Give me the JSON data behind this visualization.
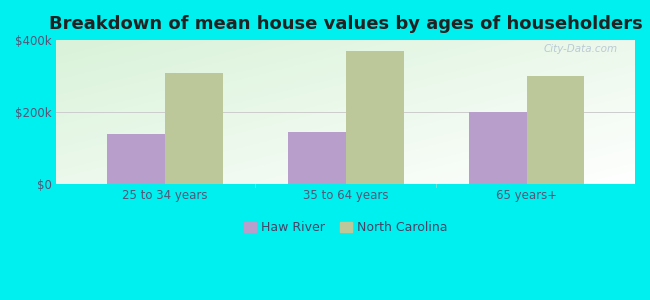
{
  "title": "Breakdown of mean house values by ages of householders",
  "categories": [
    "25 to 34 years",
    "35 to 64 years",
    "65 years+"
  ],
  "haw_river_values": [
    140000,
    145000,
    200000
  ],
  "north_carolina_values": [
    310000,
    370000,
    300000
  ],
  "haw_river_color": "#b89ecb",
  "north_carolina_color": "#bcc89a",
  "background_color": "#00efef",
  "ylim": [
    0,
    400000
  ],
  "yticks": [
    0,
    200000,
    400000
  ],
  "ytick_labels": [
    "$0",
    "$200k",
    "$400k"
  ],
  "bar_width": 0.32,
  "legend_labels": [
    "Haw River",
    "North Carolina"
  ],
  "watermark": "City-Data.com",
  "title_fontsize": 13,
  "tick_fontsize": 8.5,
  "legend_fontsize": 9,
  "plot_bg_left_top": "#d8eed8",
  "plot_bg_right_bottom": "#f8fff8"
}
